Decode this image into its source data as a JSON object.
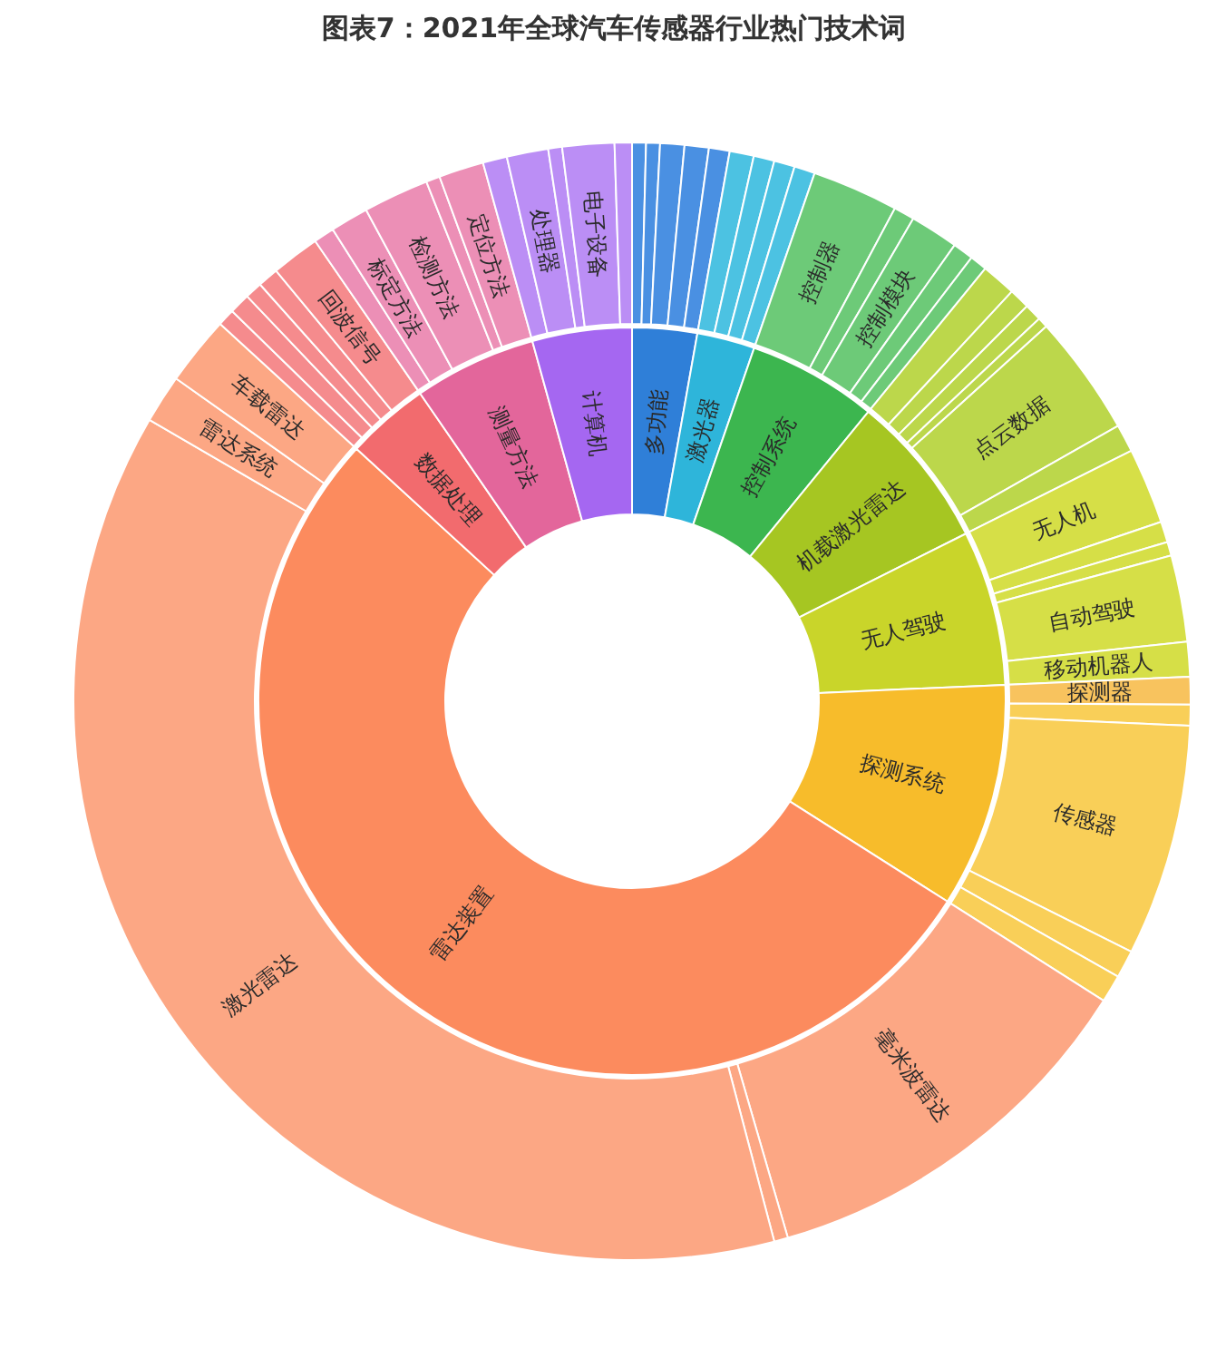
{
  "chart_data": {
    "type": "donut",
    "title": "图表7：2021年全球汽车传感器行业热门技术词",
    "series": [
      {
        "values": [
          2.8,
          2.5,
          5.6,
          6.7,
          6.7,
          9.7,
          52.8,
          3.6,
          5.3,
          4.3
        ],
        "value_labels": [
          "多功能",
          "激光器",
          "控制系统",
          "机载激光雷达",
          "无人驾驶",
          "探测系统",
          "雷达装置",
          "数据处理",
          "测量方法",
          "计算机"
        ],
        "colors": [
          "#2f7fd8",
          "#2eb5da",
          "#3cb64f",
          "#a6c622",
          "#c9d52a",
          "#f7bc2b",
          "#fc8b5e",
          "#f26b6e",
          "#e3669b",
          "#a567f1"
        ]
      },
      {
        "values": [
          0.4,
          0.4,
          0.7,
          0.7,
          0.6,
          0.7,
          0.6,
          0.6,
          0.6,
          2.5,
          0.6,
          1.4,
          0.6,
          0.5,
          1.0,
          0.6,
          0.5,
          0.3,
          3.5,
          0.8,
          2.2,
          0.6,
          0.4,
          2.5,
          1.0,
          0.8,
          0.6,
          6.7,
          0.8,
          0.8,
          11.5,
          0.4,
          37.5,
          1.4,
          2.0,
          0.5,
          0.6,
          0.5,
          0.6,
          1.4,
          0.6,
          1.1,
          1.9,
          0.4,
          1.3,
          0.7,
          1.2,
          0.4,
          1.5,
          0.5
        ],
        "value_labels": [
          null,
          null,
          null,
          null,
          null,
          null,
          null,
          null,
          null,
          "控制器",
          null,
          "控制模块",
          null,
          null,
          null,
          null,
          null,
          null,
          "点云数据",
          null,
          "无人机",
          null,
          null,
          "自动驾驶",
          "移动机器人",
          "探测器",
          null,
          "传感器",
          null,
          null,
          "毫米波雷达",
          null,
          "激光雷达",
          "雷达系统",
          "车载雷达",
          null,
          null,
          null,
          null,
          "回波信号",
          null,
          "标定方法",
          "检测方法",
          null,
          "定位方法",
          null,
          "处理器",
          null,
          "电子设备",
          null
        ],
        "colors": [
          "#4a90e2",
          "#4a90e2",
          "#4a90e2",
          "#4a90e2",
          "#4a90e2",
          "#4cc2e2",
          "#4cc2e2",
          "#4cc2e2",
          "#4cc2e2",
          "#6dca78",
          "#6dca78",
          "#6dca78",
          "#6dca78",
          "#6dca78",
          "#bcd74b",
          "#bcd74b",
          "#bcd74b",
          "#bcd74b",
          "#bcd74b",
          "#bcd74b",
          "#d6df47",
          "#d6df47",
          "#d6df47",
          "#d6df47",
          "#d6df47",
          "#f8c35e",
          "#f9cf58",
          "#f9cf58",
          "#f9cf58",
          "#f9cf58",
          "#fca784",
          "#fca784",
          "#fca784",
          "#fca784",
          "#fca784",
          "#f58b8d",
          "#f58b8d",
          "#f58b8d",
          "#f58b8d",
          "#f58b8d",
          "#ec8fb6",
          "#ec8fb6",
          "#ec8fb6",
          "#ec8fb6",
          "#ec8fb6",
          "#bb8ef5",
          "#bb8ef5",
          "#bb8ef5",
          "#bb8ef5",
          "#bb8ef5"
        ]
      }
    ]
  }
}
